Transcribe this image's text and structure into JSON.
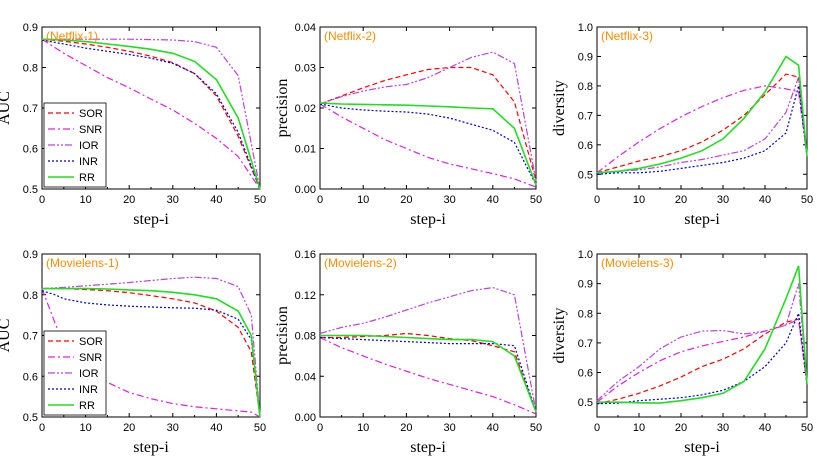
{
  "colors": {
    "SOR": "#ff0000",
    "SNR": "#dd22dd",
    "IOR": "#bb44dd",
    "INR": "#0000cc",
    "RR": "#22dd22",
    "title": "#ff8c00"
  },
  "series_styles": {
    "SOR": "dashed",
    "SNR": "dash-dot",
    "IOR": "dash-dot-dot",
    "INR": "dotted",
    "RR": "solid"
  },
  "chart_data": [
    {
      "type": "line",
      "title": "(Netflix-1)",
      "xlabel": "step-i",
      "ylabel": "AUC",
      "xlim": [
        0,
        50
      ],
      "ylim": [
        0.5,
        0.9
      ],
      "xticks": [
        "0",
        "10",
        "20",
        "30",
        "40",
        "50"
      ],
      "yticks": [
        "0.5",
        "0.6",
        "0.7",
        "0.8",
        "0.9"
      ],
      "x": [
        0,
        5,
        10,
        15,
        20,
        25,
        30,
        35,
        40,
        45,
        50
      ],
      "legend": "left",
      "legend_entries": [
        "SOR",
        "SNR",
        "IOR",
        "INR",
        "RR"
      ],
      "series": [
        {
          "name": "SOR",
          "values": [
            0.87,
            0.865,
            0.858,
            0.85,
            0.84,
            0.828,
            0.812,
            0.785,
            0.73,
            0.63,
            0.5
          ]
        },
        {
          "name": "SNR",
          "values": [
            0.87,
            0.835,
            0.805,
            0.775,
            0.75,
            0.722,
            0.695,
            0.662,
            0.625,
            0.58,
            0.5
          ]
        },
        {
          "name": "IOR",
          "values": [
            0.87,
            0.87,
            0.87,
            0.87,
            0.87,
            0.869,
            0.868,
            0.864,
            0.85,
            0.78,
            0.5
          ]
        },
        {
          "name": "INR",
          "values": [
            0.868,
            0.858,
            0.848,
            0.84,
            0.832,
            0.823,
            0.81,
            0.785,
            0.735,
            0.64,
            0.5
          ]
        },
        {
          "name": "RR",
          "values": [
            0.87,
            0.868,
            0.864,
            0.858,
            0.852,
            0.845,
            0.835,
            0.815,
            0.77,
            0.675,
            0.5
          ]
        }
      ]
    },
    {
      "type": "line",
      "title": "(Netflix-2)",
      "xlabel": "step-i",
      "ylabel": "precision",
      "xlim": [
        0,
        50
      ],
      "ylim": [
        0,
        0.04
      ],
      "xticks": [
        "0",
        "10",
        "20",
        "30",
        "40",
        "50"
      ],
      "yticks": [
        "0.00",
        "0.01",
        "0.02",
        "0.03",
        "0.04"
      ],
      "x": [
        0,
        5,
        10,
        15,
        20,
        25,
        30,
        35,
        40,
        45,
        50
      ],
      "series": [
        {
          "name": "SOR",
          "values": [
            0.021,
            0.023,
            0.025,
            0.0268,
            0.0282,
            0.0295,
            0.03,
            0.03,
            0.0282,
            0.0215,
            0.002
          ]
        },
        {
          "name": "SNR",
          "values": [
            0.021,
            0.0178,
            0.015,
            0.0122,
            0.01,
            0.0078,
            0.0062,
            0.005,
            0.0038,
            0.0025,
            0.0005
          ]
        },
        {
          "name": "IOR",
          "values": [
            0.021,
            0.0228,
            0.0242,
            0.0252,
            0.0258,
            0.0275,
            0.03,
            0.0325,
            0.0338,
            0.031,
            0.002
          ]
        },
        {
          "name": "INR",
          "values": [
            0.021,
            0.02,
            0.0195,
            0.0192,
            0.019,
            0.0185,
            0.0175,
            0.016,
            0.0145,
            0.0115,
            0.001
          ]
        },
        {
          "name": "RR",
          "values": [
            0.0212,
            0.021,
            0.0209,
            0.0208,
            0.0207,
            0.0205,
            0.0203,
            0.02,
            0.0198,
            0.015,
            0.001
          ]
        }
      ]
    },
    {
      "type": "line",
      "title": "(Netflix-3)",
      "xlabel": "step-i",
      "ylabel": "diversity",
      "xlim": [
        0,
        50
      ],
      "ylim": [
        0.45,
        1.0
      ],
      "xticks": [
        "0",
        "10",
        "20",
        "30",
        "40",
        "50"
      ],
      "yticks": [
        "0.5",
        "0.6",
        "0.7",
        "0.8",
        "0.9",
        "1.0"
      ],
      "x": [
        0,
        5,
        10,
        15,
        20,
        25,
        30,
        35,
        40,
        45,
        48,
        50
      ],
      "series": [
        {
          "name": "SOR",
          "values": [
            0.505,
            0.525,
            0.545,
            0.56,
            0.58,
            0.61,
            0.65,
            0.7,
            0.77,
            0.84,
            0.83,
            0.56
          ]
        },
        {
          "name": "SNR",
          "values": [
            0.505,
            0.56,
            0.61,
            0.655,
            0.695,
            0.73,
            0.76,
            0.785,
            0.8,
            0.79,
            0.78,
            0.56
          ]
        },
        {
          "name": "IOR",
          "values": [
            0.505,
            0.51,
            0.515,
            0.525,
            0.54,
            0.55,
            0.565,
            0.58,
            0.62,
            0.71,
            0.83,
            0.56
          ]
        },
        {
          "name": "INR",
          "values": [
            0.5,
            0.505,
            0.505,
            0.51,
            0.52,
            0.53,
            0.54,
            0.555,
            0.58,
            0.64,
            0.8,
            0.56
          ]
        },
        {
          "name": "RR",
          "values": [
            0.505,
            0.51,
            0.52,
            0.535,
            0.555,
            0.58,
            0.62,
            0.69,
            0.78,
            0.9,
            0.87,
            0.56
          ]
        }
      ]
    },
    {
      "type": "line",
      "title": "(Movielens-1)",
      "xlabel": "step-i",
      "ylabel": "AUC",
      "xlim": [
        0,
        50
      ],
      "ylim": [
        0.5,
        0.9
      ],
      "xticks": [
        "0",
        "10",
        "20",
        "30",
        "40",
        "50"
      ],
      "yticks": [
        "0.5",
        "0.6",
        "0.7",
        "0.8",
        "0.9"
      ],
      "x": [
        0,
        3,
        5,
        10,
        15,
        20,
        25,
        30,
        35,
        40,
        45,
        48,
        50
      ],
      "legend": "left",
      "legend_entries": [
        "SOR",
        "SNR",
        "IOR",
        "INR",
        "RR"
      ],
      "series": [
        {
          "name": "SOR",
          "values": [
            0.815,
            0.815,
            0.815,
            0.813,
            0.81,
            0.805,
            0.798,
            0.79,
            0.78,
            0.76,
            0.72,
            0.66,
            0.5
          ]
        },
        {
          "name": "SNR",
          "values": [
            0.815,
            0.73,
            0.68,
            0.62,
            0.585,
            0.56,
            0.545,
            0.533,
            0.525,
            0.52,
            0.515,
            0.512,
            0.5
          ]
        },
        {
          "name": "IOR",
          "values": [
            0.815,
            0.817,
            0.818,
            0.822,
            0.826,
            0.83,
            0.835,
            0.84,
            0.843,
            0.84,
            0.82,
            0.75,
            0.5
          ]
        },
        {
          "name": "INR",
          "values": [
            0.81,
            0.8,
            0.79,
            0.78,
            0.775,
            0.772,
            0.77,
            0.768,
            0.767,
            0.762,
            0.74,
            0.69,
            0.5
          ]
        },
        {
          "name": "RR",
          "values": [
            0.815,
            0.815,
            0.815,
            0.815,
            0.814,
            0.812,
            0.81,
            0.806,
            0.8,
            0.79,
            0.76,
            0.7,
            0.5
          ]
        }
      ]
    },
    {
      "type": "line",
      "title": "(Movielens-2)",
      "xlabel": "step-i",
      "ylabel": "precision",
      "xlim": [
        0,
        50
      ],
      "ylim": [
        0,
        0.16
      ],
      "xticks": [
        "0",
        "10",
        "20",
        "30",
        "40",
        "50"
      ],
      "yticks": [
        "0.00",
        "0.04",
        "0.08",
        "0.12",
        "0.16"
      ],
      "x": [
        0,
        5,
        10,
        15,
        20,
        25,
        30,
        35,
        40,
        45,
        50
      ],
      "series": [
        {
          "name": "SOR",
          "values": [
            0.078,
            0.078,
            0.079,
            0.08,
            0.082,
            0.08,
            0.077,
            0.075,
            0.07,
            0.064,
            0.005
          ]
        },
        {
          "name": "SNR",
          "values": [
            0.078,
            0.068,
            0.06,
            0.052,
            0.045,
            0.038,
            0.032,
            0.026,
            0.02,
            0.012,
            0.003
          ]
        },
        {
          "name": "IOR",
          "values": [
            0.082,
            0.088,
            0.092,
            0.098,
            0.105,
            0.112,
            0.118,
            0.124,
            0.127,
            0.12,
            0.005
          ]
        },
        {
          "name": "INR",
          "values": [
            0.078,
            0.077,
            0.076,
            0.075,
            0.074,
            0.073,
            0.072,
            0.072,
            0.072,
            0.07,
            0.005
          ]
        },
        {
          "name": "RR",
          "values": [
            0.08,
            0.08,
            0.08,
            0.079,
            0.078,
            0.077,
            0.076,
            0.076,
            0.074,
            0.06,
            0.005
          ]
        }
      ]
    },
    {
      "type": "line",
      "title": "(Movielens-3)",
      "xlabel": "step-i",
      "ylabel": "diversity",
      "xlim": [
        0,
        50
      ],
      "ylim": [
        0.45,
        1.0
      ],
      "xticks": [
        "0",
        "10",
        "20",
        "30",
        "40",
        "50"
      ],
      "yticks": [
        "0.5",
        "0.6",
        "0.7",
        "0.8",
        "0.9",
        "1.0"
      ],
      "x": [
        0,
        5,
        10,
        15,
        20,
        25,
        30,
        35,
        40,
        45,
        48,
        50
      ],
      "series": [
        {
          "name": "SOR",
          "values": [
            0.495,
            0.51,
            0.53,
            0.555,
            0.585,
            0.62,
            0.645,
            0.68,
            0.73,
            0.77,
            0.78,
            0.56
          ]
        },
        {
          "name": "SNR",
          "values": [
            0.5,
            0.555,
            0.6,
            0.64,
            0.67,
            0.69,
            0.705,
            0.72,
            0.74,
            0.76,
            0.78,
            0.56
          ]
        },
        {
          "name": "IOR",
          "values": [
            0.505,
            0.57,
            0.62,
            0.68,
            0.72,
            0.74,
            0.742,
            0.73,
            0.74,
            0.76,
            0.9,
            0.56
          ]
        },
        {
          "name": "INR",
          "values": [
            0.495,
            0.497,
            0.505,
            0.51,
            0.515,
            0.525,
            0.54,
            0.57,
            0.62,
            0.7,
            0.8,
            0.56
          ]
        },
        {
          "name": "RR",
          "values": [
            0.5,
            0.5,
            0.498,
            0.497,
            0.505,
            0.515,
            0.53,
            0.57,
            0.68,
            0.85,
            0.96,
            0.56
          ]
        }
      ]
    }
  ]
}
